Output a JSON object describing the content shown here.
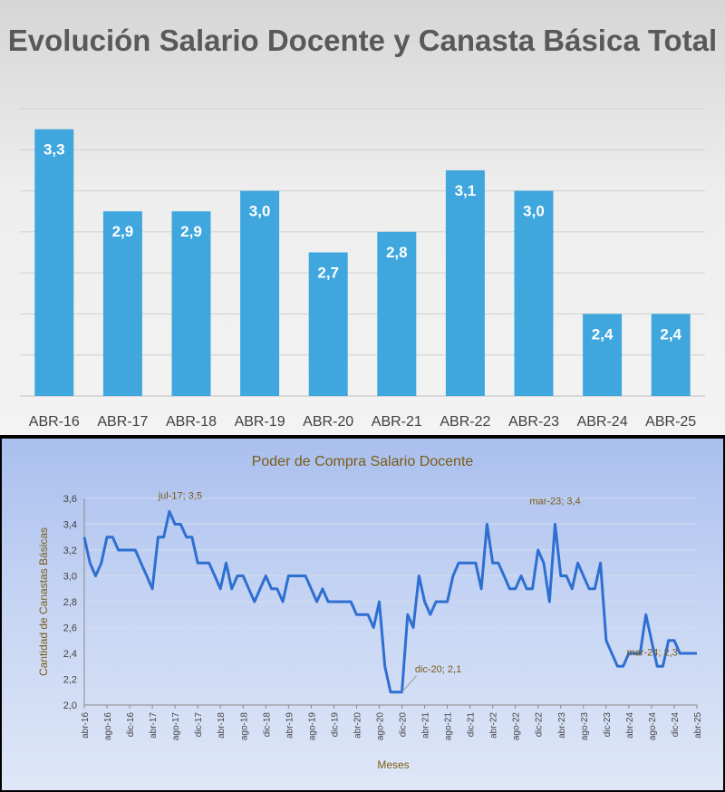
{
  "chart_data": [
    {
      "type": "bar",
      "title": "Evolución Salario Docente y Canasta Básica Total",
      "categories": [
        "ABR-16",
        "ABR-17",
        "ABR-18",
        "ABR-19",
        "ABR-20",
        "ABR-21",
        "ABR-22",
        "ABR-23",
        "ABR-24",
        "ABR-25"
      ],
      "values": [
        3.3,
        2.9,
        2.9,
        3.0,
        2.7,
        2.8,
        3.1,
        3.0,
        2.4,
        2.4
      ],
      "data_labels": [
        "3,3",
        "2,9",
        "2,9",
        "3,0",
        "2,7",
        "2,8",
        "3,1",
        "3,0",
        "2,4",
        "2,4"
      ],
      "ylim": [
        2.0,
        3.4
      ],
      "grid": true,
      "bar_color": "#3fa7de"
    },
    {
      "type": "line",
      "title": "Poder de Compra Salario Docente",
      "xlabel": "Meses",
      "ylabel": "Cantidad de Canastas Básicas",
      "ylim": [
        2.0,
        3.6
      ],
      "yticks": [
        "2,0",
        "2,2",
        "2,4",
        "2,6",
        "2,8",
        "3,0",
        "3,2",
        "3,4",
        "3,6"
      ],
      "xticks": [
        "abr-16",
        "ago-16",
        "dic-16",
        "abr-17",
        "ago-17",
        "dic-17",
        "abr-18",
        "ago-18",
        "dic-18",
        "abr-19",
        "ago-19",
        "dic-19",
        "abr-20",
        "ago-20",
        "dic-20",
        "abr-21",
        "ago-21",
        "dic-21",
        "abr-22",
        "ago-22",
        "dic-22",
        "abr-23",
        "ago-23",
        "dic-23",
        "abr-24",
        "ago-24",
        "dic-24",
        "abr-25"
      ],
      "x": [
        "abr-16",
        "may-16",
        "jun-16",
        "jul-16",
        "ago-16",
        "sep-16",
        "oct-16",
        "nov-16",
        "dic-16",
        "ene-17",
        "feb-17",
        "mar-17",
        "abr-17",
        "may-17",
        "jun-17",
        "jul-17",
        "ago-17",
        "sep-17",
        "oct-17",
        "nov-17",
        "dic-17",
        "ene-18",
        "feb-18",
        "mar-18",
        "abr-18",
        "may-18",
        "jun-18",
        "jul-18",
        "ago-18",
        "sep-18",
        "oct-18",
        "nov-18",
        "dic-18",
        "ene-19",
        "feb-19",
        "mar-19",
        "abr-19",
        "may-19",
        "jun-19",
        "jul-19",
        "ago-19",
        "sep-19",
        "oct-19",
        "nov-19",
        "dic-19",
        "ene-20",
        "feb-20",
        "mar-20",
        "abr-20",
        "may-20",
        "jun-20",
        "jul-20",
        "ago-20",
        "sep-20",
        "oct-20",
        "nov-20",
        "dic-20",
        "ene-21",
        "feb-21",
        "mar-21",
        "abr-21",
        "may-21",
        "jun-21",
        "jul-21",
        "ago-21",
        "sep-21",
        "oct-21",
        "nov-21",
        "dic-21",
        "ene-22",
        "feb-22",
        "mar-22",
        "abr-22",
        "may-22",
        "jun-22",
        "jul-22",
        "ago-22",
        "sep-22",
        "oct-22",
        "nov-22",
        "dic-22",
        "ene-23",
        "feb-23",
        "mar-23",
        "abr-23",
        "may-23",
        "jun-23",
        "jul-23",
        "ago-23",
        "sep-23",
        "oct-23",
        "nov-23",
        "dic-23",
        "ene-24",
        "feb-24",
        "mar-24",
        "abr-24",
        "may-24",
        "jun-24",
        "jul-24",
        "ago-24",
        "sep-24",
        "oct-24",
        "nov-24",
        "dic-24",
        "ene-25",
        "feb-25",
        "mar-25",
        "abr-25"
      ],
      "series": [
        {
          "values": [
            3.3,
            3.1,
            3.0,
            3.1,
            3.3,
            3.3,
            3.2,
            3.2,
            3.2,
            3.2,
            3.1,
            3.0,
            2.9,
            3.3,
            3.3,
            3.5,
            3.4,
            3.4,
            3.3,
            3.3,
            3.1,
            3.1,
            3.1,
            3.0,
            2.9,
            3.1,
            2.9,
            3.0,
            3.0,
            2.9,
            2.8,
            2.9,
            3.0,
            2.9,
            2.9,
            2.8,
            3.0,
            3.0,
            3.0,
            3.0,
            2.9,
            2.8,
            2.9,
            2.8,
            2.8,
            2.8,
            2.8,
            2.8,
            2.7,
            2.7,
            2.7,
            2.6,
            2.8,
            2.3,
            2.1,
            2.1,
            2.1,
            2.7,
            2.6,
            3.0,
            2.8,
            2.7,
            2.8,
            2.8,
            2.8,
            3.0,
            3.1,
            3.1,
            3.1,
            3.1,
            2.9,
            3.4,
            3.1,
            3.1,
            3.0,
            2.9,
            2.9,
            3.0,
            2.9,
            2.9,
            3.2,
            3.1,
            2.8,
            3.4,
            3.0,
            3.0,
            2.9,
            3.1,
            3.0,
            2.9,
            2.9,
            3.1,
            2.5,
            2.4,
            2.3,
            2.3,
            2.4,
            2.4,
            2.4,
            2.7,
            2.5,
            2.3,
            2.3,
            2.5,
            2.5,
            2.4,
            2.4,
            2.4,
            2.4
          ],
          "color": "#2e6fd2"
        }
      ],
      "annotations": [
        {
          "x": "jul-17",
          "y": 3.5,
          "text": "jul-17; 3,5"
        },
        {
          "x": "mar-23",
          "y": 3.4,
          "text": "mar-23; 3,4"
        },
        {
          "x": "mar-24",
          "y": 2.3,
          "text": "mar-24; 2,3"
        },
        {
          "x": "dic-20",
          "y": 2.1,
          "text": "dic-20; 2,1"
        }
      ],
      "grid": true
    }
  ]
}
